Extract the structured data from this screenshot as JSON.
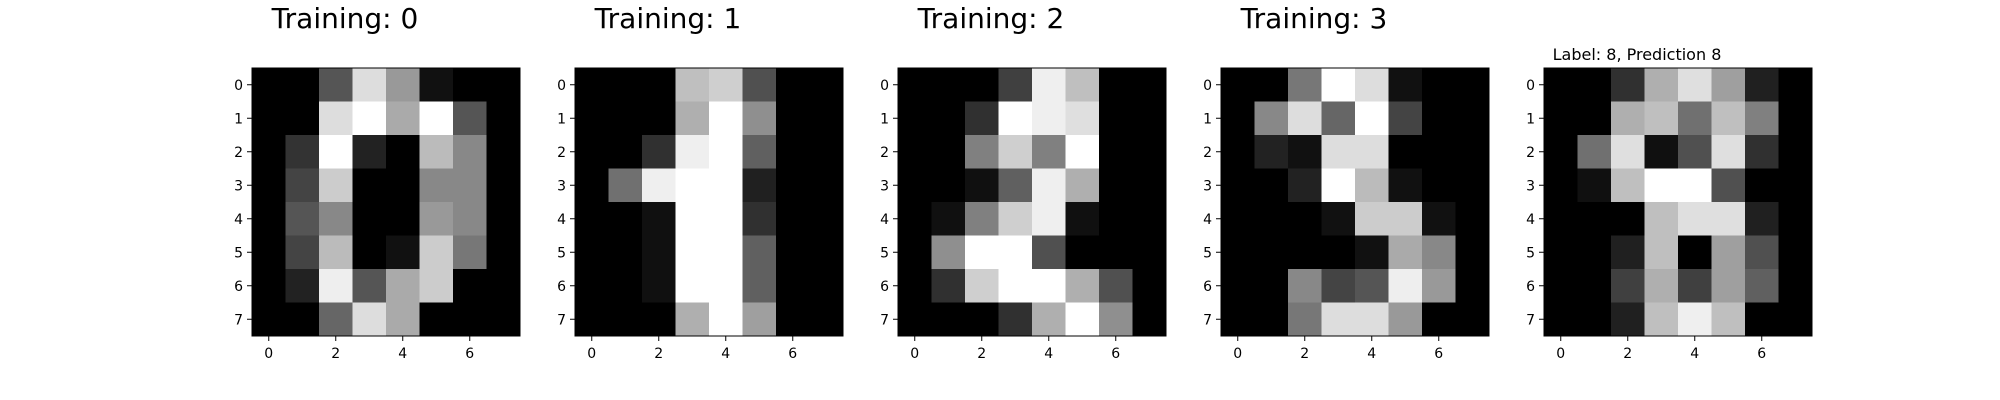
{
  "figure": {
    "title": ""
  },
  "chart_data": [
    {
      "type": "heatmap",
      "title": "Training: 0",
      "colormap": "gray_r",
      "x_ticks": [
        "0",
        "2",
        "4",
        "6"
      ],
      "y_ticks": [
        "0",
        "1",
        "2",
        "3",
        "4",
        "5",
        "6",
        "7"
      ],
      "xlim": [
        -0.5,
        7.5
      ],
      "ylim": [
        7.5,
        -0.5
      ],
      "grid": false,
      "values": [
        [
          0,
          0,
          5,
          13,
          9,
          1,
          0,
          0
        ],
        [
          0,
          0,
          13,
          15,
          10,
          15,
          5,
          0
        ],
        [
          0,
          3,
          15,
          2,
          0,
          11,
          8,
          0
        ],
        [
          0,
          4,
          12,
          0,
          0,
          8,
          8,
          0
        ],
        [
          0,
          5,
          8,
          0,
          0,
          9,
          8,
          0
        ],
        [
          0,
          4,
          11,
          0,
          1,
          12,
          7,
          0
        ],
        [
          0,
          2,
          14,
          5,
          10,
          12,
          0,
          0
        ],
        [
          0,
          0,
          6,
          13,
          10,
          0,
          0,
          0
        ]
      ]
    },
    {
      "type": "heatmap",
      "title": "Training: 1",
      "colormap": "gray_r",
      "x_ticks": [
        "0",
        "2",
        "4",
        "6"
      ],
      "y_ticks": [
        "0",
        "1",
        "2",
        "3",
        "4",
        "5",
        "6",
        "7"
      ],
      "xlim": [
        -0.5,
        7.5
      ],
      "ylim": [
        7.5,
        -0.5
      ],
      "grid": false,
      "values": [
        [
          0,
          0,
          0,
          12,
          13,
          5,
          0,
          0
        ],
        [
          0,
          0,
          0,
          11,
          16,
          9,
          0,
          0
        ],
        [
          0,
          0,
          3,
          15,
          16,
          6,
          0,
          0
        ],
        [
          0,
          7,
          15,
          16,
          16,
          2,
          0,
          0
        ],
        [
          0,
          0,
          1,
          16,
          16,
          3,
          0,
          0
        ],
        [
          0,
          0,
          1,
          16,
          16,
          6,
          0,
          0
        ],
        [
          0,
          0,
          1,
          16,
          16,
          6,
          0,
          0
        ],
        [
          0,
          0,
          0,
          11,
          16,
          10,
          0,
          0
        ]
      ]
    },
    {
      "type": "heatmap",
      "title": "Training: 2",
      "colormap": "gray_r",
      "x_ticks": [
        "0",
        "2",
        "4",
        "6"
      ],
      "y_ticks": [
        "0",
        "1",
        "2",
        "3",
        "4",
        "5",
        "6",
        "7"
      ],
      "xlim": [
        -0.5,
        7.5
      ],
      "ylim": [
        7.5,
        -0.5
      ],
      "grid": false,
      "values": [
        [
          0,
          0,
          0,
          4,
          15,
          12,
          0,
          0
        ],
        [
          0,
          0,
          3,
          16,
          15,
          14,
          0,
          0
        ],
        [
          0,
          0,
          8,
          13,
          8,
          16,
          0,
          0
        ],
        [
          0,
          0,
          1,
          6,
          15,
          11,
          0,
          0
        ],
        [
          0,
          1,
          8,
          13,
          15,
          1,
          0,
          0
        ],
        [
          0,
          9,
          16,
          16,
          5,
          0,
          0,
          0
        ],
        [
          0,
          3,
          13,
          16,
          16,
          11,
          5,
          0
        ],
        [
          0,
          0,
          0,
          3,
          11,
          16,
          9,
          0
        ]
      ]
    },
    {
      "type": "heatmap",
      "title": "Training: 3",
      "colormap": "gray_r",
      "x_ticks": [
        "0",
        "2",
        "4",
        "6"
      ],
      "y_ticks": [
        "0",
        "1",
        "2",
        "3",
        "4",
        "5",
        "6",
        "7"
      ],
      "xlim": [
        -0.5,
        7.5
      ],
      "ylim": [
        7.5,
        -0.5
      ],
      "grid": false,
      "values": [
        [
          0,
          0,
          7,
          15,
          13,
          1,
          0,
          0
        ],
        [
          0,
          8,
          13,
          6,
          15,
          4,
          0,
          0
        ],
        [
          0,
          2,
          1,
          13,
          13,
          0,
          0,
          0
        ],
        [
          0,
          0,
          2,
          15,
          11,
          1,
          0,
          0
        ],
        [
          0,
          0,
          0,
          1,
          12,
          12,
          1,
          0
        ],
        [
          0,
          0,
          0,
          0,
          1,
          10,
          8,
          0
        ],
        [
          0,
          0,
          8,
          4,
          5,
          14,
          9,
          0
        ],
        [
          0,
          0,
          7,
          13,
          13,
          9,
          0,
          0
        ]
      ]
    },
    {
      "type": "heatmap",
      "title": "Label: 8, Prediction 8",
      "colormap": "gray_r",
      "x_ticks": [
        "0",
        "2",
        "4",
        "6"
      ],
      "y_ticks": [
        "0",
        "1",
        "2",
        "3",
        "4",
        "5",
        "6",
        "7"
      ],
      "xlim": [
        -0.5,
        7.5
      ],
      "ylim": [
        7.5,
        -0.5
      ],
      "grid": false,
      "values": [
        [
          0,
          0,
          3,
          11,
          14,
          10,
          2,
          0
        ],
        [
          0,
          0,
          11,
          12,
          7,
          12,
          8,
          0
        ],
        [
          0,
          7,
          14,
          1,
          5,
          14,
          3,
          0
        ],
        [
          0,
          1,
          12,
          16,
          16,
          5,
          0,
          0
        ],
        [
          0,
          0,
          0,
          12,
          14,
          14,
          2,
          0
        ],
        [
          0,
          0,
          2,
          12,
          0,
          10,
          5,
          0
        ],
        [
          0,
          0,
          4,
          11,
          4,
          10,
          6,
          0
        ],
        [
          0,
          0,
          2,
          12,
          15,
          12,
          0,
          0
        ]
      ]
    }
  ]
}
